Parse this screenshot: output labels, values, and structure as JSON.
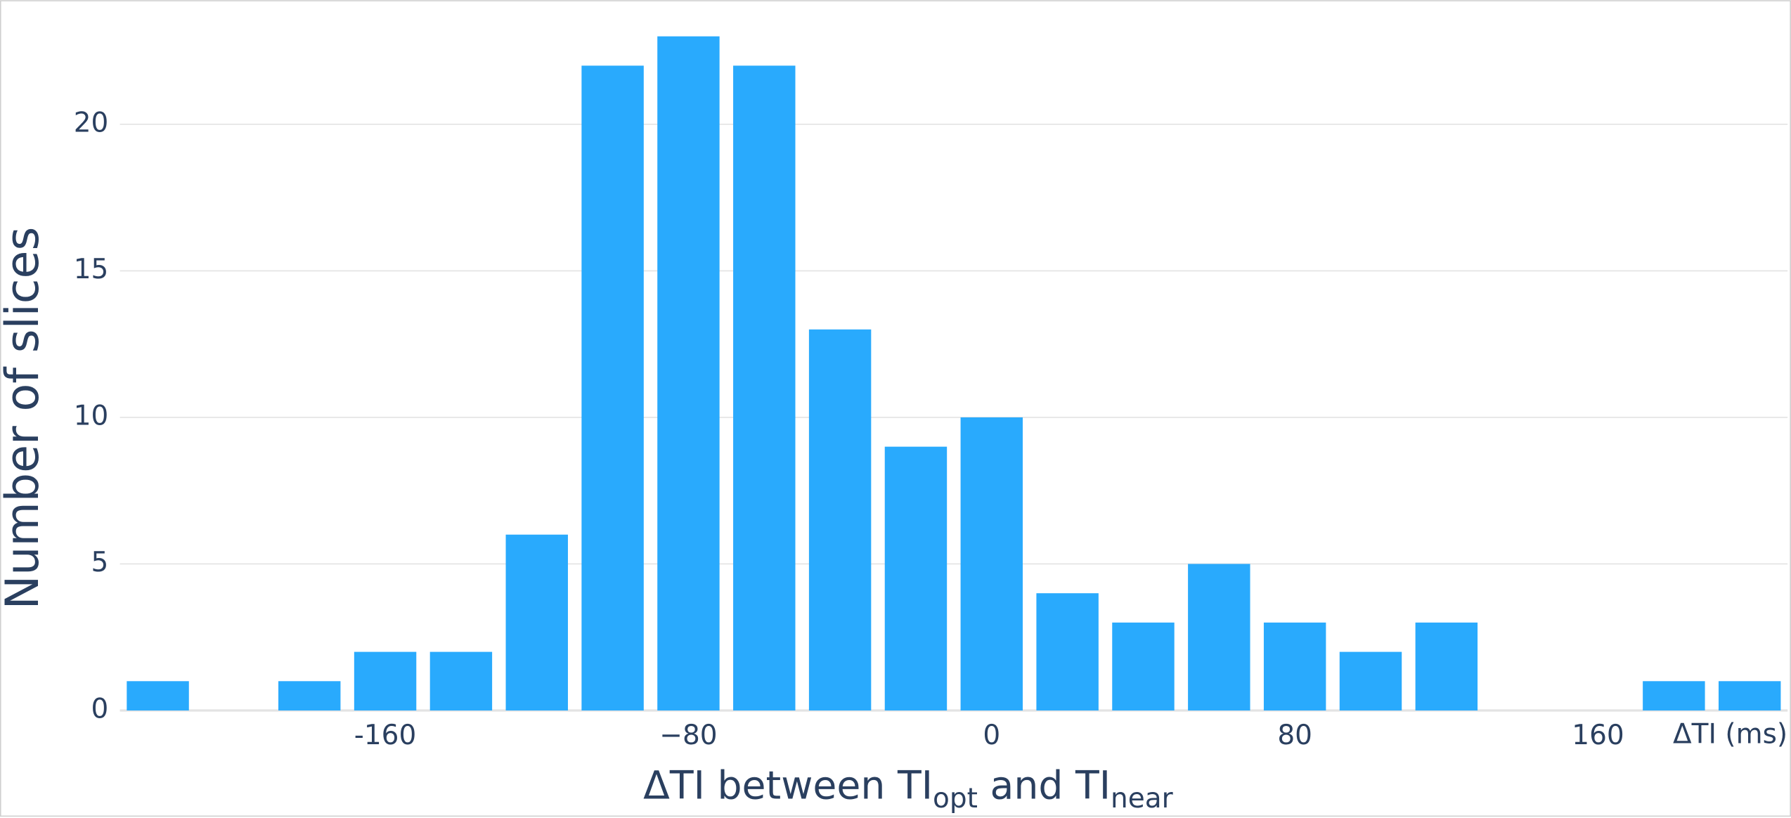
{
  "chart_data": {
    "type": "histogram",
    "xlabel": [
      "ΔTI between TI",
      "opt",
      " and TI",
      "near"
    ],
    "ylabel": "Number of slices",
    "x_unit_label": "ΔTI (ms)",
    "bins": [
      -230,
      -210,
      -190,
      -170,
      -150,
      -130,
      -110,
      -90,
      -70,
      -50,
      -30,
      -10,
      10,
      30,
      50,
      70,
      90,
      110,
      130,
      150,
      170,
      190,
      210
    ],
    "values": [
      1,
      0,
      1,
      2,
      2,
      6,
      22,
      23,
      22,
      13,
      9,
      10,
      4,
      3,
      5,
      3,
      2,
      3,
      0,
      0,
      1,
      1
    ],
    "color": "#29aafd",
    "xlim": [
      -230,
      210
    ],
    "xticks": [
      -160,
      {
        "value": -80,
        "label": "−80"
      },
      0,
      80,
      160
    ],
    "ylim": [
      0,
      24
    ],
    "yticks": [
      0,
      5,
      10,
      15,
      20
    ],
    "grid": true
  }
}
